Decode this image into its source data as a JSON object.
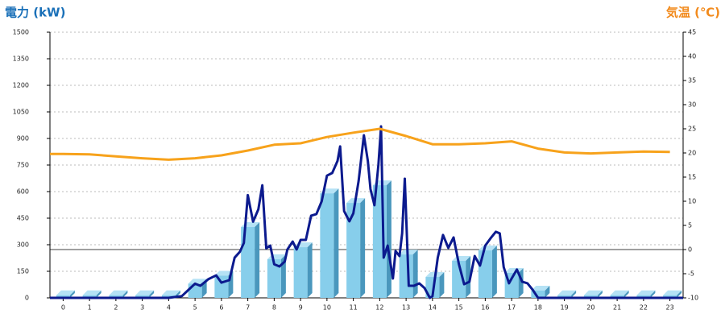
{
  "chart_data": {
    "type": "combo",
    "y_label": "電力 (kW)",
    "y2_label": "気温 (℃)",
    "categories": [
      "0",
      "1",
      "2",
      "3",
      "4",
      "5",
      "6",
      "7",
      "8",
      "9",
      "10",
      "11",
      "12",
      "13",
      "14",
      "15",
      "16",
      "17",
      "18",
      "19",
      "20",
      "21",
      "22",
      "23"
    ],
    "xlim": [
      -0.5,
      23.5
    ],
    "ylim": [
      0,
      1500
    ],
    "yticks": [
      0,
      150,
      300,
      450,
      600,
      750,
      900,
      1050,
      1200,
      1350,
      1500
    ],
    "y2lim": [
      -10,
      45
    ],
    "y2ticks": [
      -10,
      -5,
      0,
      5,
      10,
      15,
      20,
      25,
      30,
      35,
      40,
      45
    ],
    "grid": true,
    "series": [
      {
        "type": "bar",
        "color": "#87ceeb",
        "values": [
          15,
          15,
          15,
          15,
          15,
          80,
          125,
          400,
          218,
          286,
          590,
          536,
          636,
          245,
          118,
          209,
          268,
          141,
          41,
          15,
          15,
          15,
          15,
          15
        ]
      },
      {
        "type": "line",
        "color": "#0c1a8e",
        "x": [
          -0.5,
          4,
          4.5,
          5,
          5.2,
          5.5,
          5.8,
          6,
          6.3,
          6.5,
          6.7,
          6.85,
          7,
          7.2,
          7.4,
          7.55,
          7.7,
          7.85,
          8,
          8.2,
          8.4,
          8.5,
          8.7,
          8.85,
          9,
          9.2,
          9.4,
          9.6,
          9.8,
          10,
          10.2,
          10.4,
          10.5,
          10.65,
          10.85,
          11,
          11.2,
          11.4,
          11.55,
          11.65,
          11.8,
          11.95,
          12.05,
          12.15,
          12.3,
          12.5,
          12.6,
          12.75,
          12.85,
          12.95,
          13.1,
          13.3,
          13.5,
          13.7,
          13.9,
          14,
          14.2,
          14.4,
          14.6,
          14.8,
          15,
          15.2,
          15.4,
          15.6,
          15.8,
          16,
          16.2,
          16.4,
          16.55,
          16.7,
          16.9,
          17,
          17.2,
          17.4,
          17.6,
          17.8,
          18,
          23.5
        ],
        "values": [
          0,
          0,
          10,
          80,
          68,
          105,
          127,
          86,
          100,
          227,
          260,
          310,
          580,
          430,
          500,
          636,
          280,
          295,
          190,
          177,
          205,
          273,
          318,
          273,
          327,
          327,
          464,
          473,
          545,
          690,
          705,
          773,
          855,
          490,
          432,
          477,
          660,
          918,
          773,
          614,
          523,
          750,
          968,
          227,
          295,
          109,
          264,
          236,
          364,
          673,
          68,
          68,
          82,
          55,
          0,
          9,
          227,
          355,
          282,
          341,
          191,
          77,
          91,
          236,
          182,
          295,
          336,
          373,
          364,
          173,
          82,
          109,
          160,
          91,
          82,
          45,
          0,
          0
        ]
      },
      {
        "type": "line",
        "axis": "y2",
        "color": "#f7a21b",
        "x": [
          -0.5,
          0,
          1,
          2,
          3,
          4,
          5,
          6,
          7,
          8,
          9,
          10,
          11,
          12,
          13,
          14,
          15,
          16,
          17,
          18,
          19,
          20,
          21,
          22,
          23
        ],
        "values": [
          19.8,
          19.8,
          19.7,
          19.3,
          18.9,
          18.6,
          18.9,
          19.5,
          20.5,
          21.7,
          22,
          23.3,
          24.2,
          25,
          23.5,
          21.8,
          21.8,
          22,
          22.4,
          20.9,
          20.1,
          19.9,
          20.1,
          20.3,
          20.2
        ]
      }
    ]
  }
}
